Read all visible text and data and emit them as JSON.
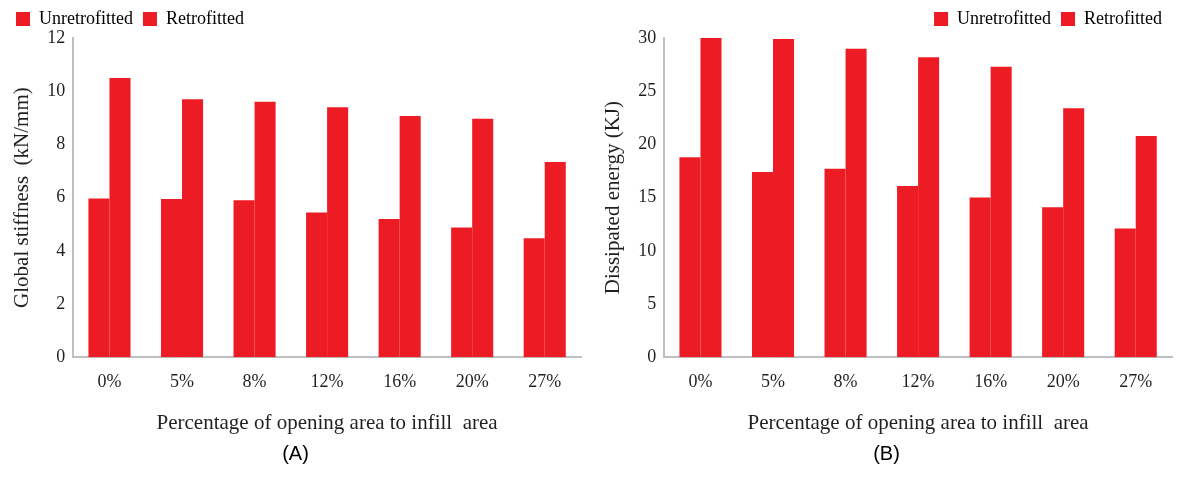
{
  "chart_data": [
    {
      "type": "bar",
      "categories": [
        "0%",
        "5%",
        "8%",
        "12%",
        "16%",
        "20%",
        "27%"
      ],
      "xlabel": "Percentage of opening area to infill  area",
      "ylabel": "Global stiffness  (kN/mm)",
      "ylim": [
        0,
        12
      ],
      "yticks": [
        0,
        2,
        4,
        6,
        8,
        10,
        12
      ],
      "grid": false,
      "legend": "top left",
      "annotations": [
        "(A)"
      ],
      "series": [
        {
          "name": "Unretrofitted",
          "color": "#ed1c24",
          "values": [
            5.97,
            5.95,
            5.9,
            5.44,
            5.2,
            4.88,
            4.47
          ]
        },
        {
          "name": "Retrofitted",
          "color": "#ed1c24",
          "values": [
            10.5,
            9.7,
            9.6,
            9.4,
            9.07,
            8.96,
            7.34
          ]
        }
      ]
    },
    {
      "type": "bar",
      "categories": [
        "0%",
        "5%",
        "8%",
        "12%",
        "16%",
        "20%",
        "27%"
      ],
      "xlabel": "Percentage of opening area to infill  area",
      "ylabel": "Dissipated energy (KJ)",
      "ylim": [
        0,
        30
      ],
      "yticks": [
        0,
        5,
        10,
        15,
        20,
        25,
        30
      ],
      "grid": false,
      "legend": "top right",
      "annotations": [
        "(B)"
      ],
      "series": [
        {
          "name": "Unretrofitted",
          "color": "#ed1c24",
          "values": [
            18.8,
            17.4,
            17.7,
            16.1,
            15.0,
            14.1,
            12.1
          ]
        },
        {
          "name": "Retrofitted",
          "color": "#ed1c24",
          "values": [
            30.0,
            29.9,
            29.0,
            28.2,
            27.3,
            23.4,
            20.8
          ]
        }
      ]
    }
  ]
}
